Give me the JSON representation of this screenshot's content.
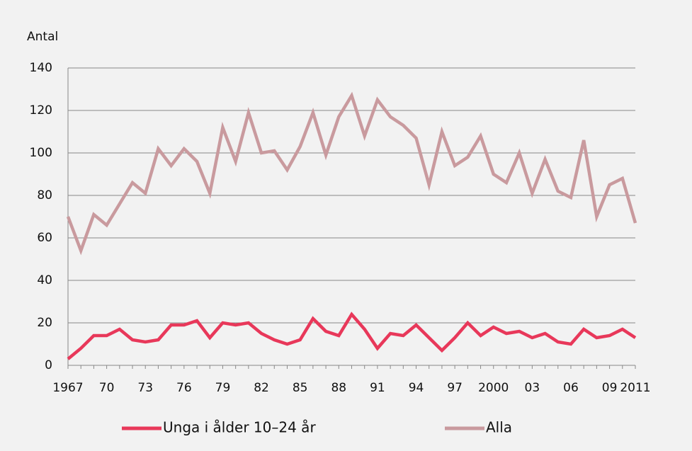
{
  "chart_data": {
    "type": "line",
    "y_label": "Antal",
    "categories": [
      "1967",
      null,
      null,
      "70",
      null,
      null,
      "73",
      null,
      null,
      "76",
      null,
      null,
      "79",
      null,
      null,
      "82",
      null,
      null,
      "85",
      null,
      null,
      "88",
      null,
      null,
      "91",
      null,
      null,
      "94",
      null,
      null,
      "97",
      null,
      null,
      "2000",
      null,
      null,
      "03",
      null,
      null,
      "06",
      null,
      null,
      "09",
      null,
      "2011"
    ],
    "series": [
      {
        "name": "Unga i ålder 10–24 år",
        "color": "#e8385a",
        "values": [
          3,
          8,
          14,
          14,
          17,
          12,
          11,
          12,
          19,
          19,
          21,
          13,
          20,
          19,
          20,
          15,
          12,
          10,
          12,
          22,
          16,
          14,
          24,
          17,
          8,
          15,
          14,
          19,
          13,
          7,
          13,
          20,
          14,
          18,
          15,
          16,
          13,
          15,
          11,
          10,
          17,
          13,
          14,
          17,
          13
        ]
      },
      {
        "name": "Alla",
        "color": "#c99a9e",
        "values": [
          70,
          54,
          71,
          66,
          76,
          86,
          81,
          102,
          94,
          102,
          96,
          81,
          112,
          96,
          119,
          100,
          101,
          92,
          103,
          119,
          99,
          117,
          127,
          108,
          125,
          117,
          113,
          107,
          85,
          110,
          94,
          98,
          108,
          90,
          86,
          100,
          81,
          97,
          82,
          79,
          106,
          70,
          85,
          88,
          67
        ]
      }
    ],
    "ylim": [
      0,
      140
    ],
    "yticks": [
      0,
      20,
      40,
      60,
      80,
      100,
      120,
      140
    ],
    "grid": true,
    "legend": "bottom"
  }
}
